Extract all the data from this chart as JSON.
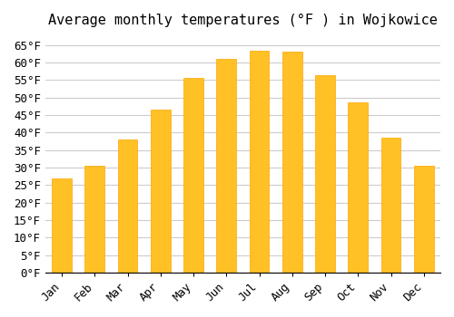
{
  "title": "Average monthly temperatures (°F ) in Wojkowice",
  "months": [
    "Jan",
    "Feb",
    "Mar",
    "Apr",
    "May",
    "Jun",
    "Jul",
    "Aug",
    "Sep",
    "Oct",
    "Nov",
    "Dec"
  ],
  "values": [
    27,
    30.5,
    38,
    46.5,
    55.5,
    61,
    63.5,
    63,
    56.5,
    48.5,
    38.5,
    30.5
  ],
  "bar_color": "#FFC125",
  "bar_edge_color": "#FFA500",
  "background_color": "#ffffff",
  "grid_color": "#cccccc",
  "ylim": [
    0,
    68
  ],
  "yticks": [
    0,
    5,
    10,
    15,
    20,
    25,
    30,
    35,
    40,
    45,
    50,
    55,
    60,
    65
  ],
  "title_fontsize": 11,
  "tick_fontsize": 9,
  "font_family": "monospace"
}
